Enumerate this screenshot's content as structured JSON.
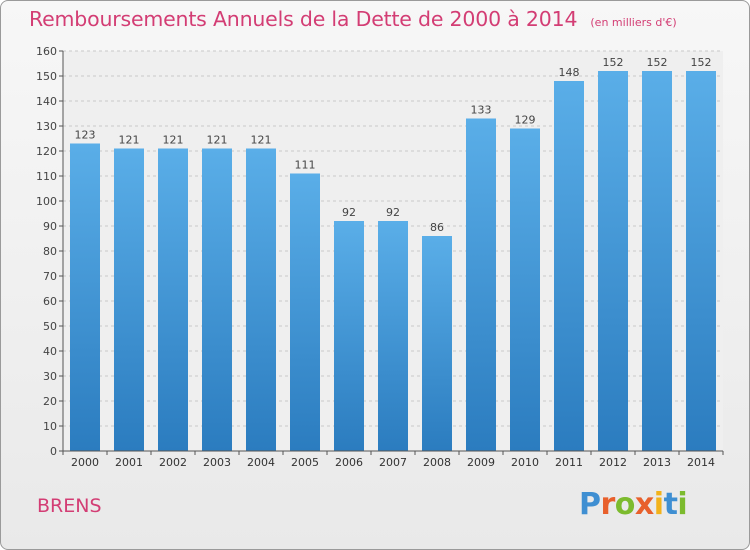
{
  "chart_data": {
    "type": "bar",
    "title": "Remboursements Annuels de la Dette de 2000 à 2014",
    "subtitle": "(en milliers d'€)",
    "categories": [
      "2000",
      "2001",
      "2002",
      "2003",
      "2004",
      "2005",
      "2006",
      "2007",
      "2008",
      "2009",
      "2010",
      "2011",
      "2012",
      "2013",
      "2014"
    ],
    "values": [
      123,
      121,
      121,
      121,
      121,
      111,
      92,
      92,
      86,
      133,
      129,
      148,
      152,
      152,
      152
    ],
    "ylim": [
      0,
      160
    ],
    "yticks": [
      0,
      10,
      20,
      30,
      40,
      50,
      60,
      70,
      80,
      90,
      100,
      110,
      120,
      130,
      140,
      150,
      160
    ],
    "xlabel": "",
    "ylabel": "",
    "grid": "horizontal dashed",
    "colors": {
      "bar_light": "#5aaee8",
      "bar_dark": "#2b7cbf",
      "title": "#d33d74"
    }
  },
  "footer": {
    "commune": "BRENS",
    "brand_letters": [
      "P",
      "r",
      "o",
      "x",
      "i",
      "t",
      "i"
    ],
    "brand_colors": [
      "#3f8fd2",
      "#e8602c",
      "#7cbb2e",
      "#e8602c",
      "#f2b21b",
      "#3f8fd2",
      "#7cbb2e"
    ]
  }
}
